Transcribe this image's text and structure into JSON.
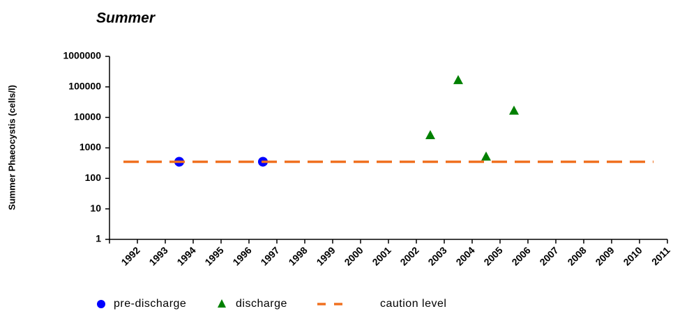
{
  "chart_data": {
    "type": "scatter",
    "title": "Summer",
    "y_label": "Summer Phaeocystis (cells/l)",
    "categories": [
      "1992",
      "1993",
      "1994",
      "1995",
      "1996",
      "1997",
      "1998",
      "1999",
      "2000",
      "2001",
      "2002",
      "2003",
      "2004",
      "2005",
      "2006",
      "2007",
      "2008",
      "2009",
      "2010",
      "2011"
    ],
    "series": [
      {
        "name": "pre-discharge",
        "color": "#0000ff",
        "marker": "circle",
        "values": [
          null,
          null,
          350,
          null,
          null,
          350,
          null,
          null,
          null,
          null,
          null,
          null,
          null,
          null,
          null,
          null,
          null,
          null,
          null,
          null
        ]
      },
      {
        "name": "discharge",
        "color": "#008000",
        "marker": "triangle",
        "values": [
          null,
          null,
          null,
          null,
          null,
          null,
          null,
          null,
          null,
          null,
          null,
          2500,
          160000,
          500,
          16000,
          null,
          null,
          null,
          null,
          null
        ]
      },
      {
        "name": "caution level",
        "color": "#f07020",
        "marker": "dash",
        "values": [
          350,
          350,
          350,
          350,
          350,
          350,
          350,
          350,
          350,
          350,
          350,
          350,
          350,
          350,
          350,
          350,
          350,
          350,
          350,
          350
        ]
      }
    ],
    "ylim": [
      1,
      1000000
    ],
    "yticks": [
      1,
      10,
      100,
      1000,
      10000,
      100000,
      1000000
    ],
    "ylog": true,
    "grid": false
  }
}
